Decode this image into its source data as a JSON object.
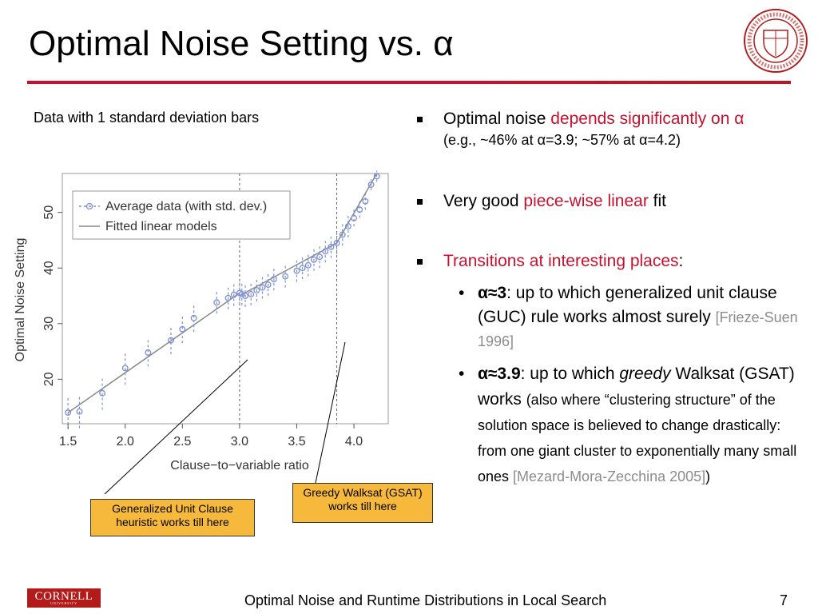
{
  "slide": {
    "title": "Optimal Noise Setting vs. α",
    "caption": "Data with 1 standard deviation bars",
    "footer": "Optimal Noise and Runtime Distributions in Local Search",
    "page_number": "7",
    "logo_text": "CORNELL",
    "logo_subtext": "UNIVERSITY",
    "accent_color": "#c8102e"
  },
  "callouts": {
    "guc": "Generalized Unit Clause heuristic works till here",
    "gsat": "Greedy Walksat (GSAT) works till here"
  },
  "bullets": {
    "b1_a": "Optimal noise ",
    "b1_b": "depends significantly on α",
    "b1_sub": "(e.g., ~46% at α=3.9; ~57% at α=4.2)",
    "b2_a": "Very good ",
    "b2_b": "piece-wise linear",
    "b2_c": " fit",
    "b3_a": "Transitions at interesting places",
    "b3_b": ":",
    "s1_a": "α≈3",
    "s1_b": ": up to which generalized unit clause (GUC) rule works almost surely ",
    "s1_c": "[Frieze-Suen 1996]",
    "s2_a": "α≈3.9",
    "s2_b": ": up to which ",
    "s2_c": "greedy",
    "s2_d": " Walksat (GSAT) works ",
    "s2_e": "(also where “clustering structure” of the solution space is believed to change drastically: from one giant cluster to exponentially many small ones ",
    "s2_f": "[Mezard-Mora-Zecchina 2005]",
    "s2_g": ")"
  },
  "chart_data": {
    "type": "scatter",
    "xlabel": "Clause−to−variable ratio",
    "ylabel": "Optimal Noise Setting",
    "xlim": [
      1.45,
      4.3
    ],
    "ylim": [
      12,
      57
    ],
    "x_ticks": [
      "1.5",
      "2.0",
      "2.5",
      "3.0",
      "3.5",
      "4.0"
    ],
    "y_ticks": [
      "20",
      "30",
      "40",
      "50"
    ],
    "vlines": [
      3.0,
      3.85
    ],
    "legend": {
      "position": "top-left",
      "entries": [
        "Average data (with std. dev.)",
        "Fitted linear models"
      ]
    },
    "data_color": "#7b8fd6",
    "fit_color": "#888888",
    "points": [
      {
        "x": 1.5,
        "y": 14.0,
        "sd": 3.0
      },
      {
        "x": 1.6,
        "y": 14.2,
        "sd": 3.0
      },
      {
        "x": 1.8,
        "y": 17.5,
        "sd": 3.0
      },
      {
        "x": 2.0,
        "y": 22.0,
        "sd": 3.0
      },
      {
        "x": 2.2,
        "y": 24.8,
        "sd": 2.5
      },
      {
        "x": 2.4,
        "y": 27.0,
        "sd": 2.5
      },
      {
        "x": 2.5,
        "y": 29.0,
        "sd": 2.5
      },
      {
        "x": 2.6,
        "y": 31.0,
        "sd": 2.5
      },
      {
        "x": 2.8,
        "y": 33.8,
        "sd": 2.0
      },
      {
        "x": 2.9,
        "y": 34.6,
        "sd": 2.0
      },
      {
        "x": 2.95,
        "y": 35.2,
        "sd": 2.0
      },
      {
        "x": 3.0,
        "y": 35.5,
        "sd": 2.0
      },
      {
        "x": 3.02,
        "y": 35.3,
        "sd": 2.0
      },
      {
        "x": 3.05,
        "y": 35.0,
        "sd": 2.0
      },
      {
        "x": 3.1,
        "y": 35.3,
        "sd": 2.0
      },
      {
        "x": 3.15,
        "y": 36.0,
        "sd": 2.0
      },
      {
        "x": 3.2,
        "y": 36.5,
        "sd": 2.0
      },
      {
        "x": 3.25,
        "y": 37.0,
        "sd": 2.0
      },
      {
        "x": 3.3,
        "y": 38.0,
        "sd": 2.0
      },
      {
        "x": 3.4,
        "y": 38.5,
        "sd": 2.0
      },
      {
        "x": 3.5,
        "y": 39.5,
        "sd": 2.0
      },
      {
        "x": 3.55,
        "y": 40.0,
        "sd": 2.0
      },
      {
        "x": 3.6,
        "y": 40.5,
        "sd": 2.0
      },
      {
        "x": 3.65,
        "y": 41.5,
        "sd": 2.0
      },
      {
        "x": 3.7,
        "y": 42.0,
        "sd": 2.0
      },
      {
        "x": 3.75,
        "y": 43.0,
        "sd": 2.0
      },
      {
        "x": 3.8,
        "y": 43.8,
        "sd": 2.0
      },
      {
        "x": 3.85,
        "y": 44.5,
        "sd": 2.0
      },
      {
        "x": 3.9,
        "y": 46.0,
        "sd": 2.0
      },
      {
        "x": 3.95,
        "y": 47.5,
        "sd": 2.0
      },
      {
        "x": 4.0,
        "y": 49.0,
        "sd": 1.5
      },
      {
        "x": 4.05,
        "y": 50.5,
        "sd": 1.5
      },
      {
        "x": 4.1,
        "y": 52.0,
        "sd": 1.5
      },
      {
        "x": 4.15,
        "y": 55.0,
        "sd": 1.0
      },
      {
        "x": 4.2,
        "y": 56.5,
        "sd": 1.0
      }
    ],
    "fit_segments": [
      {
        "x": [
          1.5,
          3.0
        ],
        "y": [
          14.0,
          35.5
        ]
      },
      {
        "x": [
          3.0,
          3.85
        ],
        "y": [
          35.0,
          44.5
        ]
      },
      {
        "x": [
          3.85,
          4.2
        ],
        "y": [
          44.5,
          57.0
        ]
      }
    ]
  }
}
